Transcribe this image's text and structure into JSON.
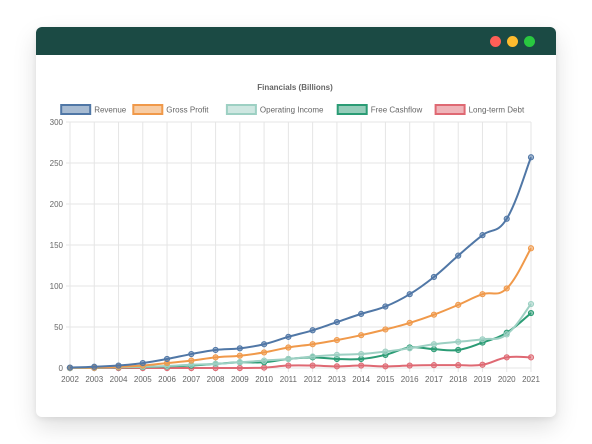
{
  "window": {
    "colors": {
      "titlebar": "#1b4a44",
      "close": "#fe5f57",
      "minimize": "#febc2e",
      "maximize": "#29c840"
    }
  },
  "chart_data": {
    "type": "line",
    "title": "Financials (Billions)",
    "xlabel": "",
    "ylabel": "",
    "x": [
      "2002",
      "2003",
      "2004",
      "2005",
      "2006",
      "2007",
      "2008",
      "2009",
      "2010",
      "2011",
      "2012",
      "2013",
      "2014",
      "2015",
      "2016",
      "2017",
      "2018",
      "2019",
      "2020",
      "2021"
    ],
    "ylim": [
      0,
      300
    ],
    "yticks": [
      0,
      50,
      100,
      150,
      200,
      250,
      300
    ],
    "grid": true,
    "legend_position": "top",
    "series": [
      {
        "name": "Revenue",
        "color": "#5077a6",
        "values": [
          0.5,
          1.5,
          3,
          6,
          11,
          17,
          22,
          24,
          29,
          38,
          46,
          56,
          66,
          75,
          90,
          111,
          137,
          162,
          182,
          257
        ]
      },
      {
        "name": "Gross Profit",
        "color": "#f0994a",
        "values": [
          0.2,
          0.5,
          1.5,
          3,
          6,
          9,
          13,
          15,
          19,
          25,
          29,
          34,
          40,
          47,
          55,
          65,
          77,
          90,
          97,
          146
        ]
      },
      {
        "name": "Operating Income",
        "color": "#9dd0c3",
        "values": [
          0,
          0.3,
          1,
          1.5,
          2.5,
          4,
          5,
          7,
          9,
          11,
          14,
          16,
          17,
          20,
          24,
          29,
          32,
          35,
          41,
          78
        ]
      },
      {
        "name": "Free Cashflow",
        "color": "#2b9c75",
        "values": [
          0,
          0.2,
          0.8,
          1.2,
          2,
          3,
          5,
          7,
          7,
          11,
          13,
          11,
          11,
          16,
          25,
          23,
          22,
          31,
          43,
          67
        ]
      },
      {
        "name": "Long-term Debt",
        "color": "#df6973",
        "values": [
          0,
          0,
          0,
          0,
          0,
          0,
          0,
          0,
          0.5,
          3,
          3,
          2,
          3,
          2,
          3,
          3.5,
          3.5,
          4,
          13,
          13
        ]
      }
    ]
  }
}
